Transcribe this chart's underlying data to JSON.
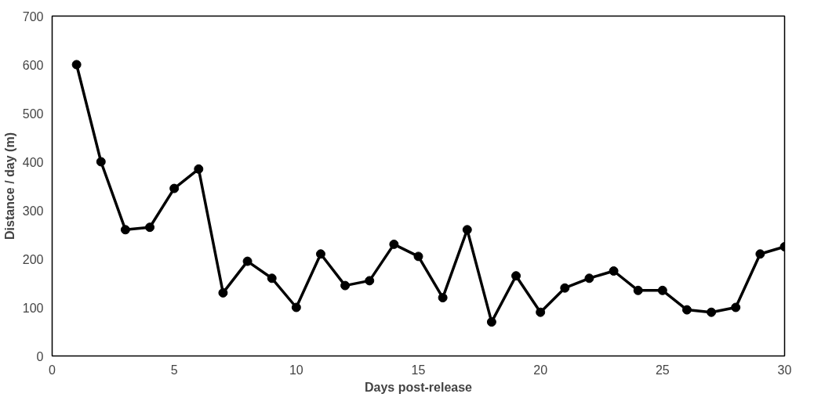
{
  "chart_data": {
    "type": "line",
    "xlabel": "Days post-release",
    "ylabel": "Distance / day (m)",
    "x": [
      1,
      2,
      3,
      4,
      5,
      6,
      7,
      8,
      9,
      10,
      11,
      12,
      13,
      14,
      15,
      16,
      17,
      18,
      19,
      20,
      21,
      22,
      23,
      24,
      25,
      26,
      27,
      28,
      29,
      30
    ],
    "series": [
      {
        "color": "#000000",
        "values": [
          600,
          400,
          260,
          265,
          345,
          385,
          130,
          195,
          160,
          100,
          210,
          145,
          155,
          230,
          205,
          120,
          260,
          70,
          165,
          90,
          140,
          160,
          175,
          135,
          135,
          95,
          90,
          100,
          210,
          225
        ]
      }
    ],
    "xlim": [
      0,
      30
    ],
    "ylim": [
      0,
      700
    ],
    "xticks": [
      0,
      5,
      10,
      15,
      20,
      25,
      30
    ],
    "yticks": [
      0,
      100,
      200,
      300,
      400,
      500,
      600,
      700
    ],
    "grid": false,
    "marker": "circle",
    "line_style": "solid"
  }
}
